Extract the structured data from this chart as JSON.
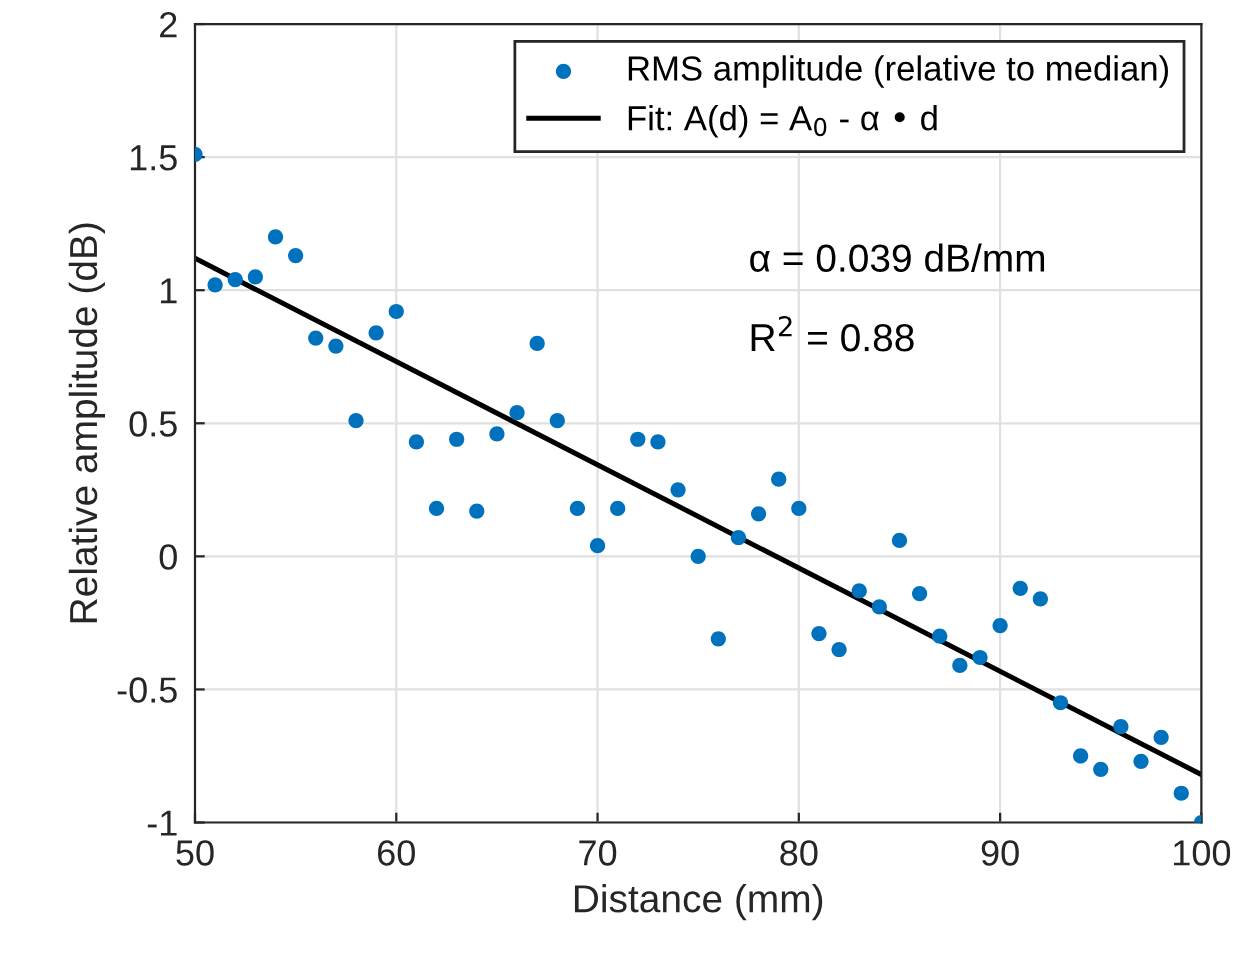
{
  "chart_data": {
    "type": "scatter",
    "xlabel": "Distance (mm)",
    "ylabel": "Relative amplitude (dB)",
    "xlim": [
      50,
      100
    ],
    "xticks": [
      50,
      60,
      70,
      80,
      90,
      100
    ],
    "ylim": [
      -1,
      2
    ],
    "yticks": [
      -1,
      -0.5,
      0,
      0.5,
      1,
      1.5,
      2
    ],
    "grid": true,
    "legend": "top right",
    "annotations": [
      "α = 0.039 dB/mm",
      "R$^{2}$ = 0.88"
    ],
    "series": [
      {
        "name": "RMS amplitude (relative to median)",
        "marker": "circle",
        "color": "#0072bd",
        "x": [
          50,
          51,
          52,
          53,
          54,
          55,
          56,
          57,
          58,
          59,
          60,
          61,
          62,
          63,
          64,
          65,
          66,
          67,
          68,
          69,
          70,
          71,
          72,
          73,
          74,
          75,
          76,
          77,
          78,
          79,
          80,
          81,
          82,
          83,
          84,
          85,
          86,
          87,
          88,
          89,
          90,
          91,
          92,
          93,
          94,
          95,
          96,
          97,
          98,
          99,
          100
        ],
        "values": [
          1.51,
          1.02,
          1.04,
          1.05,
          1.2,
          1.13,
          0.82,
          0.79,
          0.51,
          0.84,
          0.92,
          0.43,
          0.18,
          0.44,
          0.17,
          0.46,
          0.54,
          0.8,
          0.51,
          0.18,
          0.04,
          0.18,
          0.44,
          0.43,
          0.25,
          0.0,
          -0.31,
          0.07,
          0.16,
          0.29,
          0.18,
          -0.29,
          -0.35,
          -0.13,
          -0.19,
          0.06,
          -0.14,
          -0.3,
          -0.41,
          -0.38,
          -0.26,
          -0.12,
          -0.16,
          -0.55,
          -0.75,
          -0.8,
          -0.64,
          -0.77,
          -0.68,
          -0.89,
          -1.0
        ]
      },
      {
        "name": "Fit: A(d) = A$_{0}$ - α • d",
        "type": "line",
        "marker": "none",
        "color": "#000000",
        "line_style": "solid",
        "x": [
          50,
          100
        ],
        "values": [
          1.12,
          -0.82
        ]
      }
    ]
  }
}
